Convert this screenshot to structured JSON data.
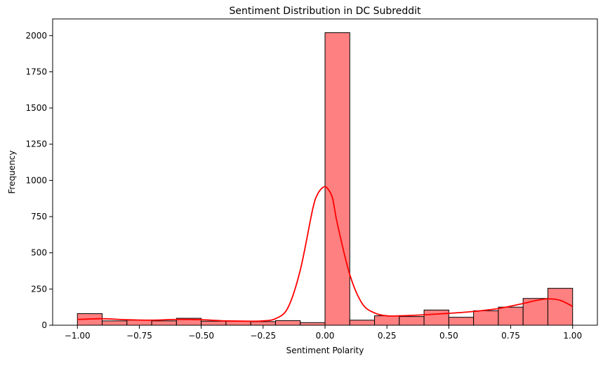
{
  "chart_data": {
    "type": "bar",
    "title": "Sentiment Distribution in DC Subreddit",
    "xlabel": "Sentiment Polarity",
    "ylabel": "Frequency",
    "xlim": [
      -1.1,
      1.1
    ],
    "ylim": [
      0,
      2115
    ],
    "bin_edges": [
      -1.0,
      -0.9,
      -0.8,
      -0.7,
      -0.6,
      -0.5,
      -0.4,
      -0.3,
      -0.2,
      -0.1,
      0.0,
      0.1,
      0.2,
      0.3,
      0.4,
      0.5,
      0.6,
      0.7,
      0.8,
      0.9,
      1.0
    ],
    "values": [
      80,
      30,
      35,
      30,
      48,
      28,
      28,
      25,
      32,
      18,
      2020,
      35,
      65,
      60,
      105,
      55,
      100,
      125,
      185,
      255
    ],
    "x_ticks": [
      -1.0,
      -0.75,
      -0.5,
      -0.25,
      0.0,
      0.25,
      0.5,
      0.75,
      1.0
    ],
    "x_tick_labels": [
      "−1.00",
      "−0.75",
      "−0.50",
      "−0.25",
      "0.00",
      "0.25",
      "0.50",
      "0.75",
      "1.00"
    ],
    "y_ticks": [
      0,
      250,
      500,
      750,
      1000,
      1250,
      1500,
      1750,
      2000
    ],
    "y_tick_labels": [
      "0",
      "250",
      "500",
      "750",
      "1000",
      "1250",
      "1500",
      "1750",
      "2000"
    ],
    "kde": {
      "x": [
        -1.0,
        -0.9,
        -0.8,
        -0.7,
        -0.6,
        -0.5,
        -0.4,
        -0.3,
        -0.25,
        -0.2,
        -0.15,
        -0.1,
        -0.05,
        -0.03,
        -0.01,
        0.0,
        0.01,
        0.03,
        0.05,
        0.1,
        0.15,
        0.2,
        0.25,
        0.3,
        0.4,
        0.5,
        0.6,
        0.7,
        0.8,
        0.85,
        0.9,
        0.95,
        1.0
      ],
      "y": [
        40,
        45,
        38,
        35,
        40,
        38,
        30,
        28,
        30,
        45,
        120,
        380,
        800,
        905,
        950,
        955,
        945,
        880,
        700,
        350,
        150,
        85,
        65,
        65,
        72,
        82,
        95,
        115,
        150,
        170,
        182,
        172,
        130
      ]
    },
    "grid": false,
    "colors": {
      "bar_fill": "#ff8080",
      "bar_edge": "#000000",
      "kde_line": "#ff0000"
    }
  }
}
